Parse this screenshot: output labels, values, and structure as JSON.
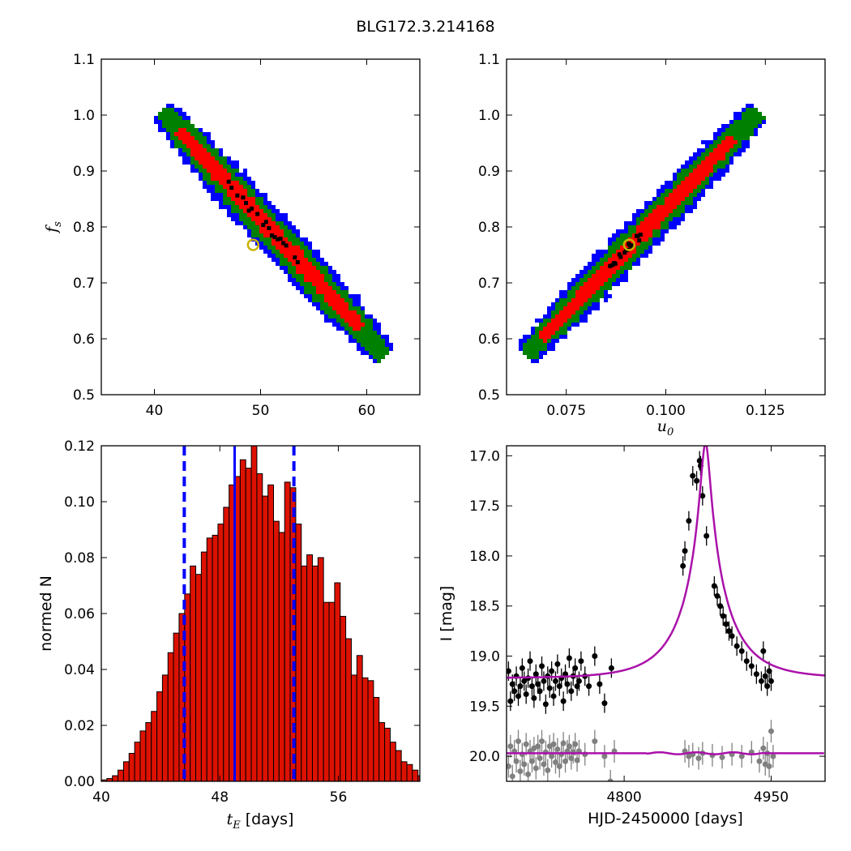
{
  "figure": {
    "title": "BLG172.3.214168"
  },
  "chart_data": [
    {
      "id": "fs-vs-tE",
      "type": "heatmap",
      "xlabel": "",
      "ylabel": "f_s",
      "ylabel_main": "f",
      "ylabel_sub": "s",
      "xlim": [
        35,
        65
      ],
      "ylim": [
        0.5,
        1.1
      ],
      "xticks": [
        40,
        50,
        60
      ],
      "xtick_labels": [
        "40",
        "50",
        "60"
      ],
      "yticks": [
        0.5,
        0.6,
        0.7,
        0.8,
        0.9,
        1.0,
        1.1
      ],
      "ytick_labels": [
        "0.5",
        "0.6",
        "0.7",
        "0.8",
        "0.9",
        "1.0",
        "1.1"
      ],
      "ridge": [
        [
          41.0,
          1.0
        ],
        [
          61.5,
          0.575
        ]
      ],
      "half_widths": {
        "blue": 0.036,
        "green": 0.026,
        "red": 0.014,
        "black": 0.004
      },
      "black_range": [
        47.0,
        53.5
      ],
      "best_fit": {
        "x": 49.3,
        "y": 0.768
      },
      "colors": {
        "blue": "#0000ff",
        "green": "#008000",
        "red": "#ff0000",
        "black": "#000000",
        "marker": "#c8b400"
      }
    },
    {
      "id": "fs-vs-u0",
      "type": "heatmap",
      "xlabel": "u_0",
      "xlabel_main": "u",
      "xlabel_sub": "0",
      "ylabel": "",
      "xlim": [
        0.06,
        0.14
      ],
      "ylim": [
        0.5,
        1.1
      ],
      "xticks": [
        0.075,
        0.1,
        0.125
      ],
      "xtick_labels": [
        "0.075",
        "0.100",
        "0.125"
      ],
      "yticks": [
        0.5,
        0.6,
        0.7,
        0.8,
        0.9,
        1.0,
        1.1
      ],
      "ytick_labels": [
        "0.5",
        "0.6",
        "0.7",
        "0.8",
        "0.9",
        "1.0",
        "1.1"
      ],
      "ridge": [
        [
          0.0655,
          0.575
        ],
        [
          0.1225,
          1.0
        ]
      ],
      "half_widths": {
        "blue": 0.034,
        "green": 0.024,
        "red": 0.013,
        "black": 0.004
      },
      "black_range": [
        0.086,
        0.094
      ],
      "best_fit": {
        "x": 0.0908,
        "y": 0.768
      },
      "colors": {
        "blue": "#0000ff",
        "green": "#008000",
        "red": "#ff0000",
        "black": "#000000",
        "marker": "#c8b400"
      }
    },
    {
      "id": "tE-histogram",
      "type": "bar",
      "xlabel": "t_E [days]",
      "xlabel_main": "t",
      "xlabel_sub": "E",
      "xlabel_rest": " [days]",
      "ylabel": "normed N",
      "xlim": [
        40,
        61.5
      ],
      "ylim": [
        0.0,
        0.12
      ],
      "xticks": [
        40,
        48,
        56
      ],
      "xtick_labels": [
        "40",
        "48",
        "56"
      ],
      "yticks": [
        0.0,
        0.02,
        0.04,
        0.06,
        0.08,
        0.1,
        0.12
      ],
      "ytick_labels": [
        "0.00",
        "0.02",
        "0.04",
        "0.06",
        "0.08",
        "0.10",
        "0.12"
      ],
      "bin_start": 40.0,
      "bin_width": 0.375,
      "values": [
        0.0005,
        0.001,
        0.002,
        0.004,
        0.007,
        0.01,
        0.014,
        0.018,
        0.021,
        0.025,
        0.032,
        0.038,
        0.046,
        0.053,
        0.06,
        0.067,
        0.077,
        0.074,
        0.082,
        0.087,
        0.088,
        0.092,
        0.098,
        0.106,
        0.109,
        0.115,
        0.112,
        0.12,
        0.11,
        0.102,
        0.106,
        0.093,
        0.089,
        0.107,
        0.105,
        0.092,
        0.077,
        0.081,
        0.077,
        0.08,
        0.064,
        0.064,
        0.071,
        0.059,
        0.051,
        0.038,
        0.045,
        0.037,
        0.036,
        0.03,
        0.021,
        0.019,
        0.014,
        0.011,
        0.007,
        0.006,
        0.004,
        0.002,
        0.002,
        0.001,
        0.001,
        0.0005,
        0.0005
      ],
      "vlines": {
        "median": 49.0,
        "lower": 45.6,
        "upper": 53.0
      },
      "colors": {
        "bar": "#dd1100",
        "edge": "#000000",
        "median": "#0000ff",
        "bounds": "#0000ff"
      }
    },
    {
      "id": "light-curve",
      "type": "scatter",
      "xlabel": "HJD-2450000 [days]",
      "ylabel": "I [mag]",
      "xlim": [
        4680,
        5005
      ],
      "ylim": [
        20.25,
        16.9
      ],
      "xticks": [
        4800,
        4950
      ],
      "xtick_labels": [
        "4800",
        "4950"
      ],
      "yticks": [
        17.0,
        17.5,
        18.0,
        18.5,
        19.0,
        19.5,
        20.0
      ],
      "ytick_labels": [
        "17.0",
        "17.5",
        "18.0",
        "18.5",
        "19.0",
        "19.5",
        "20.0"
      ],
      "model": {
        "t0": 4883.0,
        "u0": 0.091,
        "tE": 49.5,
        "fs": 0.768,
        "baseline": 19.22
      },
      "residual_offset": 19.97,
      "data_black": [
        [
          4682,
          19.15
        ],
        [
          4684,
          19.45
        ],
        [
          4686,
          19.28
        ],
        [
          4688,
          19.35
        ],
        [
          4690,
          19.2
        ],
        [
          4692,
          19.4
        ],
        [
          4694,
          19.3
        ],
        [
          4696,
          19.12
        ],
        [
          4698,
          19.25
        ],
        [
          4700,
          19.38
        ],
        [
          4702,
          19.22
        ],
        [
          4704,
          19.05
        ],
        [
          4706,
          19.3
        ],
        [
          4708,
          19.42
        ],
        [
          4710,
          19.18
        ],
        [
          4712,
          19.28
        ],
        [
          4714,
          19.35
        ],
        [
          4716,
          19.1
        ],
        [
          4718,
          19.25
        ],
        [
          4720,
          19.48
        ],
        [
          4722,
          19.2
        ],
        [
          4724,
          19.32
        ],
        [
          4726,
          19.15
        ],
        [
          4728,
          19.4
        ],
        [
          4730,
          19.25
        ],
        [
          4732,
          19.08
        ],
        [
          4734,
          19.3
        ],
        [
          4736,
          19.22
        ],
        [
          4738,
          19.45
        ],
        [
          4740,
          19.18
        ],
        [
          4742,
          19.28
        ],
        [
          4744,
          19.02
        ],
        [
          4746,
          19.35
        ],
        [
          4748,
          19.2
        ],
        [
          4750,
          19.12
        ],
        [
          4752,
          19.3
        ],
        [
          4754,
          19.25
        ],
        [
          4756,
          19.05
        ],
        [
          4760,
          19.2
        ],
        [
          4764,
          19.3
        ],
        [
          4770,
          19.0
        ],
        [
          4775,
          19.28
        ],
        [
          4780,
          19.47
        ],
        [
          4787,
          19.12
        ],
        [
          4860,
          18.1
        ],
        [
          4862,
          17.95
        ],
        [
          4866,
          17.65
        ],
        [
          4870,
          17.2
        ],
        [
          4874,
          17.25
        ],
        [
          4877,
          17.05
        ],
        [
          4878,
          17.1
        ],
        [
          4880,
          17.4
        ],
        [
          4884,
          17.8
        ],
        [
          4892,
          18.3
        ],
        [
          4895,
          18.4
        ],
        [
          4898,
          18.5
        ],
        [
          4901,
          18.6
        ],
        [
          4904,
          18.68
        ],
        [
          4907,
          18.75
        ],
        [
          4910,
          18.8
        ],
        [
          4915,
          18.9
        ],
        [
          4920,
          18.95
        ],
        [
          4925,
          19.05
        ],
        [
          4930,
          19.1
        ],
        [
          4935,
          19.18
        ],
        [
          4940,
          19.25
        ],
        [
          4942,
          18.95
        ],
        [
          4944,
          19.2
        ],
        [
          4946,
          19.3
        ],
        [
          4948,
          19.15
        ],
        [
          4950,
          19.25
        ]
      ],
      "data_gray": [
        [
          4682,
          20.1
        ],
        [
          4684,
          19.9
        ],
        [
          4686,
          20.2
        ],
        [
          4688,
          19.95
        ],
        [
          4690,
          20.05
        ],
        [
          4692,
          19.85
        ],
        [
          4694,
          20.15
        ],
        [
          4696,
          19.98
        ],
        [
          4698,
          20.08
        ],
        [
          4700,
          19.88
        ],
        [
          4702,
          20.18
        ],
        [
          4704,
          19.95
        ],
        [
          4706,
          20.05
        ],
        [
          4708,
          19.92
        ],
        [
          4710,
          20.12
        ],
        [
          4712,
          19.9
        ],
        [
          4714,
          20.02
        ],
        [
          4716,
          19.85
        ],
        [
          4718,
          20.08
        ],
        [
          4720,
          19.96
        ],
        [
          4722,
          20.14
        ],
        [
          4724,
          19.9
        ],
        [
          4726,
          20.0
        ],
        [
          4728,
          19.88
        ],
        [
          4730,
          20.06
        ],
        [
          4732,
          19.93
        ],
        [
          4734,
          20.1
        ],
        [
          4736,
          19.98
        ],
        [
          4738,
          19.87
        ],
        [
          4740,
          20.05
        ],
        [
          4742,
          19.95
        ],
        [
          4744,
          19.9
        ],
        [
          4746,
          20.02
        ],
        [
          4748,
          19.96
        ],
        [
          4750,
          19.88
        ],
        [
          4752,
          20.04
        ],
        [
          4754,
          19.95
        ],
        [
          4760,
          19.98
        ],
        [
          4770,
          19.85
        ],
        [
          4780,
          20.0
        ],
        [
          4786,
          20.25
        ],
        [
          4790,
          19.95
        ],
        [
          4862,
          19.95
        ],
        [
          4866,
          20.0
        ],
        [
          4870,
          19.98
        ],
        [
          4876,
          20.02
        ],
        [
          4880,
          19.97
        ],
        [
          4890,
          19.99
        ],
        [
          4900,
          20.01
        ],
        [
          4910,
          19.98
        ],
        [
          4920,
          20.0
        ],
        [
          4930,
          19.96
        ],
        [
          4938,
          20.05
        ],
        [
          4942,
          19.92
        ],
        [
          4944,
          20.08
        ],
        [
          4946,
          19.97
        ],
        [
          4948,
          20.1
        ],
        [
          4950,
          19.75
        ],
        [
          4952,
          20.0
        ]
      ],
      "colors": {
        "model": "#aa11aa",
        "black": "#000000",
        "gray": "#808080"
      }
    }
  ]
}
